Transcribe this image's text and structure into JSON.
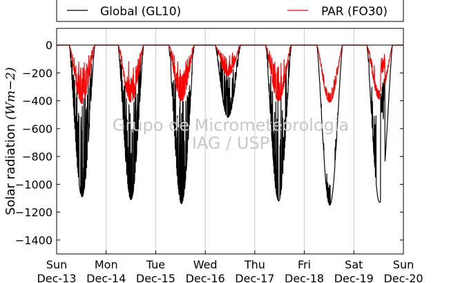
{
  "chart_data": {
    "type": "line",
    "title": "",
    "xlabel": "",
    "ylabel": "Solar radiation (Wm−2)",
    "ylabel_parts": {
      "text": "Solar radiation ",
      "unit": "(Wm−2)"
    },
    "ylim": [
      -1500,
      120
    ],
    "yticks": [
      0,
      -200,
      -400,
      -600,
      -800,
      -1000,
      -1200,
      -1400
    ],
    "ytick_labels": [
      "0",
      "−200",
      "−400",
      "−600",
      "−800",
      "−1000",
      "−1200",
      "−1400"
    ],
    "xlim": [
      0,
      7
    ],
    "xticks": [
      {
        "day": "Sun",
        "date": "Dec-13"
      },
      {
        "day": "Mon",
        "date": "Dec-14"
      },
      {
        "day": "Tue",
        "date": "Dec-15"
      },
      {
        "day": "Wed",
        "date": "Dec-16"
      },
      {
        "day": "Thu",
        "date": "Dec-17"
      },
      {
        "day": "Fri",
        "date": "Dec-18"
      },
      {
        "day": "Sat",
        "date": "Dec-19"
      },
      {
        "day": "Sun",
        "date": "Dec-20"
      }
    ],
    "grid": "vertical",
    "legend": {
      "placement": "top, above plot"
    },
    "watermark": [
      "Grupo de Micrometeorologia",
      "IAG / USP"
    ],
    "series": [
      {
        "name": "Global (GL10)",
        "color": "#000000",
        "daily_peaks": [
          -1090,
          -1110,
          -1140,
          -520,
          -1120,
          -1150,
          -1130
        ],
        "peak_hours": [
          12.3,
          12.0,
          12.5,
          11.0,
          11.5,
          12.3,
          12.5
        ]
      },
      {
        "name": "PAR (FO30)",
        "color": "#ff0000",
        "daily_peaks": [
          -420,
          -410,
          -400,
          -220,
          -400,
          -410,
          -390
        ],
        "peak_hours": [
          12.3,
          12.0,
          12.5,
          11.0,
          11.5,
          12.3,
          12.5
        ]
      }
    ]
  }
}
